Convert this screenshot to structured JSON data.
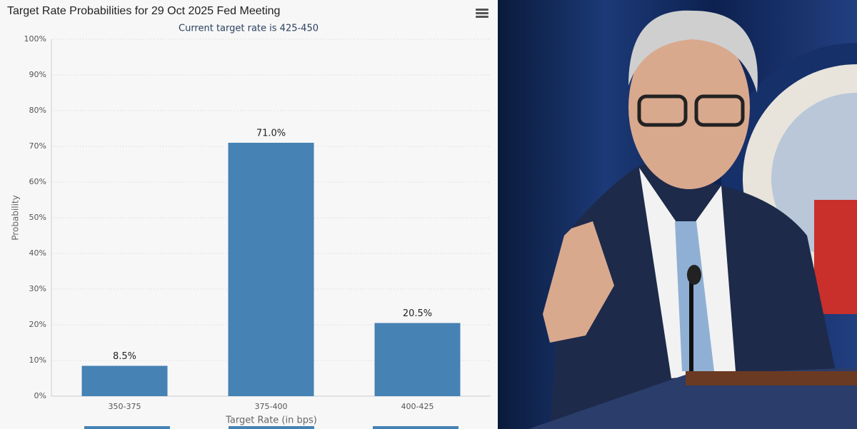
{
  "chart_data": {
    "type": "bar",
    "title": "Target Rate Probabilities for 29 Oct 2025 Fed Meeting",
    "subtitle": "Current target rate is 425-450",
    "x_label": "Target Rate (in bps)",
    "y_label": "Probability",
    "categories": [
      "350-375",
      "375-400",
      "400-425"
    ],
    "values": [
      8.5,
      71.0,
      20.5
    ],
    "value_labels": [
      "8.5%",
      "71.0%",
      "20.5%"
    ],
    "color": "#4682b4",
    "ylim": [
      0,
      100
    ],
    "yticks": [
      {
        "value": 0,
        "label": "0%"
      },
      {
        "value": 10,
        "label": "10%"
      },
      {
        "value": 20,
        "label": "20%"
      },
      {
        "value": 30,
        "label": "30%"
      },
      {
        "value": 40,
        "label": "40%"
      },
      {
        "value": 50,
        "label": "50%"
      },
      {
        "value": 60,
        "label": "60%"
      },
      {
        "value": 70,
        "label": "70%"
      },
      {
        "value": 80,
        "label": "80%"
      },
      {
        "value": 90,
        "label": "90%"
      },
      {
        "value": 100,
        "label": "100%"
      }
    ],
    "grid": true
  }
}
